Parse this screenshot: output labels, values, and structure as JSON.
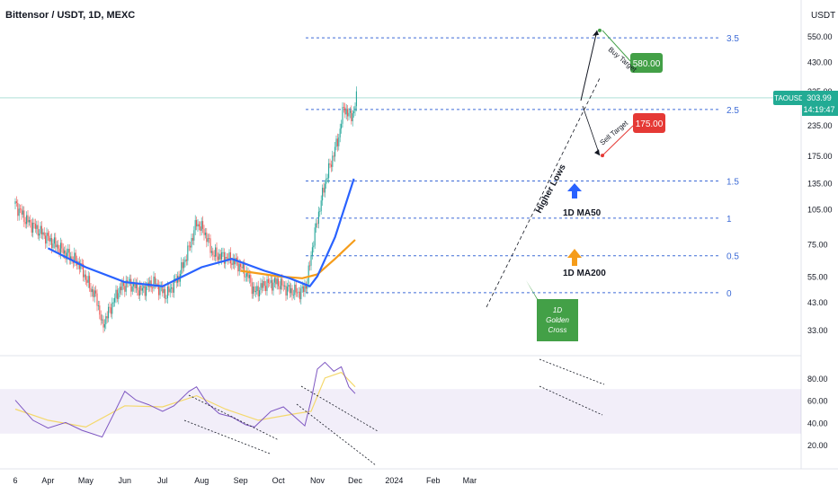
{
  "header": {
    "title": "Bittensor / USDT, 1D, MEXC",
    "currency": "USDT"
  },
  "chart_data": {
    "type": "candlestick",
    "symbol": "TAOUSDT",
    "last_price": "303.99",
    "countdown": "14:19:47",
    "price_scale": "log",
    "y_ticks": [
      550,
      430,
      325,
      235,
      175,
      135,
      105,
      75,
      55,
      43,
      33
    ],
    "y_tick_labels": [
      "550.00",
      "430.00",
      "325.00",
      "235.00",
      "175.00",
      "135.00",
      "105.00",
      "75.00",
      "55.00",
      "43.00",
      "33.00"
    ],
    "x_ticks": [
      {
        "date": "2023-03-06",
        "label": "6"
      },
      {
        "date": "2023-04-01",
        "label": "Apr"
      },
      {
        "date": "2023-05-01",
        "label": "May"
      },
      {
        "date": "2023-06-01",
        "label": "Jun"
      },
      {
        "date": "2023-07-01",
        "label": "Jul"
      },
      {
        "date": "2023-08-01",
        "label": "Aug"
      },
      {
        "date": "2023-09-01",
        "label": "Sep"
      },
      {
        "date": "2023-10-01",
        "label": "Oct"
      },
      {
        "date": "2023-11-01",
        "label": "Nov"
      },
      {
        "date": "2023-12-01",
        "label": "Dec"
      },
      {
        "date": "2024-01-01",
        "label": "2024"
      },
      {
        "date": "2024-02-01",
        "label": "Feb"
      },
      {
        "date": "2024-03-01",
        "label": "Mar"
      }
    ],
    "price_path": [
      [
        "2023-03-06",
        110
      ],
      [
        "2023-03-14",
        95
      ],
      [
        "2023-03-25",
        85
      ],
      [
        "2023-04-06",
        75
      ],
      [
        "2023-04-16",
        68
      ],
      [
        "2023-04-26",
        62
      ],
      [
        "2023-05-04",
        50
      ],
      [
        "2023-05-10",
        44
      ],
      [
        "2023-05-14",
        34
      ],
      [
        "2023-05-20",
        40
      ],
      [
        "2023-05-27",
        48
      ],
      [
        "2023-06-03",
        52
      ],
      [
        "2023-06-14",
        48
      ],
      [
        "2023-06-24",
        52
      ],
      [
        "2023-07-04",
        46
      ],
      [
        "2023-07-14",
        55
      ],
      [
        "2023-07-22",
        72
      ],
      [
        "2023-07-28",
        92
      ],
      [
        "2023-08-03",
        85
      ],
      [
        "2023-08-10",
        68
      ],
      [
        "2023-08-20",
        66
      ],
      [
        "2023-08-30",
        62
      ],
      [
        "2023-09-07",
        55
      ],
      [
        "2023-09-12",
        47
      ],
      [
        "2023-09-20",
        51
      ],
      [
        "2023-09-30",
        52
      ],
      [
        "2023-10-10",
        48
      ],
      [
        "2023-10-19",
        47
      ],
      [
        "2023-10-24",
        52
      ],
      [
        "2023-10-27",
        68
      ],
      [
        "2023-11-01",
        95
      ],
      [
        "2023-11-07",
        135
      ],
      [
        "2023-11-12",
        165
      ],
      [
        "2023-11-18",
        210
      ],
      [
        "2023-11-22",
        280
      ],
      [
        "2023-11-26",
        255
      ],
      [
        "2023-11-30",
        265
      ],
      [
        "2023-12-02",
        304
      ]
    ],
    "ma50": {
      "label": "1D MA50",
      "points": [
        [
          "2023-04-01",
          72
        ],
        [
          "2023-05-01",
          60
        ],
        [
          "2023-06-01",
          52
        ],
        [
          "2023-07-01",
          50
        ],
        [
          "2023-08-01",
          60
        ],
        [
          "2023-08-25",
          65
        ],
        [
          "2023-09-20",
          58
        ],
        [
          "2023-10-10",
          54
        ],
        [
          "2023-10-26",
          50
        ],
        [
          "2023-11-01",
          55
        ],
        [
          "2023-11-15",
          80
        ],
        [
          "2023-11-30",
          140
        ]
      ]
    },
    "ma200": {
      "label": "1D MA200",
      "points": [
        [
          "2023-09-01",
          58
        ],
        [
          "2023-10-01",
          55
        ],
        [
          "2023-10-20",
          54
        ],
        [
          "2023-11-01",
          56
        ],
        [
          "2023-11-15",
          65
        ],
        [
          "2023-12-01",
          78
        ]
      ]
    },
    "fibonacci": [
      {
        "level": "3.5",
        "price": 540
      },
      {
        "level": "2.5",
        "price": 272
      },
      {
        "level": "1.5",
        "price": 137
      },
      {
        "level": "1",
        "price": 96
      },
      {
        "level": "0.5",
        "price": 67
      },
      {
        "level": "0",
        "price": 47
      }
    ],
    "annotations": {
      "buy_target": {
        "text": "Buy Target",
        "value": "580.00",
        "price": 580
      },
      "sell_target": {
        "text": "Sell Target",
        "value": "175.00",
        "price": 175
      },
      "higher_lows": "Higher Lows",
      "golden_cross": "1D Golden Cross",
      "golden_cross_lines": [
        "1D",
        "Golden",
        "Cross"
      ]
    },
    "rsi": {
      "y_ticks": [
        80,
        60,
        40,
        20
      ],
      "y_tick_labels": [
        "80.00",
        "60.00",
        "40.00",
        "20.00"
      ],
      "band": [
        30,
        70
      ],
      "path": [
        [
          "2023-03-06",
          60
        ],
        [
          "2023-03-20",
          42
        ],
        [
          "2023-04-01",
          35
        ],
        [
          "2023-04-15",
          40
        ],
        [
          "2023-04-28",
          33
        ],
        [
          "2023-05-14",
          27
        ],
        [
          "2023-05-22",
          45
        ],
        [
          "2023-06-01",
          68
        ],
        [
          "2023-06-10",
          60
        ],
        [
          "2023-06-20",
          56
        ],
        [
          "2023-07-01",
          50
        ],
        [
          "2023-07-10",
          55
        ],
        [
          "2023-07-22",
          68
        ],
        [
          "2023-07-28",
          72
        ],
        [
          "2023-08-05",
          58
        ],
        [
          "2023-08-15",
          48
        ],
        [
          "2023-08-25",
          45
        ],
        [
          "2023-09-05",
          38
        ],
        [
          "2023-09-12",
          36
        ],
        [
          "2023-09-25",
          50
        ],
        [
          "2023-10-05",
          54
        ],
        [
          "2023-10-15",
          44
        ],
        [
          "2023-10-22",
          37
        ],
        [
          "2023-10-27",
          60
        ],
        [
          "2023-11-01",
          88
        ],
        [
          "2023-11-07",
          94
        ],
        [
          "2023-11-14",
          86
        ],
        [
          "2023-11-20",
          90
        ],
        [
          "2023-11-26",
          72
        ],
        [
          "2023-12-01",
          66
        ]
      ],
      "signal": [
        [
          "2023-03-06",
          52
        ],
        [
          "2023-04-01",
          42
        ],
        [
          "2023-05-01",
          36
        ],
        [
          "2023-06-01",
          55
        ],
        [
          "2023-07-01",
          54
        ],
        [
          "2023-07-28",
          64
        ],
        [
          "2023-08-20",
          52
        ],
        [
          "2023-09-15",
          42
        ],
        [
          "2023-10-15",
          48
        ],
        [
          "2023-10-27",
          50
        ],
        [
          "2023-11-07",
          80
        ],
        [
          "2023-11-20",
          85
        ],
        [
          "2023-12-01",
          72
        ]
      ]
    }
  },
  "colors": {
    "up": "#26a69a",
    "down": "#ef5350",
    "ma50": "#2962ff",
    "ma200": "#f59c1a",
    "fib": "#3d6bd6",
    "rsi": "#7e57c2",
    "rsi_signal": "#f4d86b",
    "buy_badge": "#43a047",
    "sell_badge": "#e53935",
    "last_price": "#22ab94"
  }
}
